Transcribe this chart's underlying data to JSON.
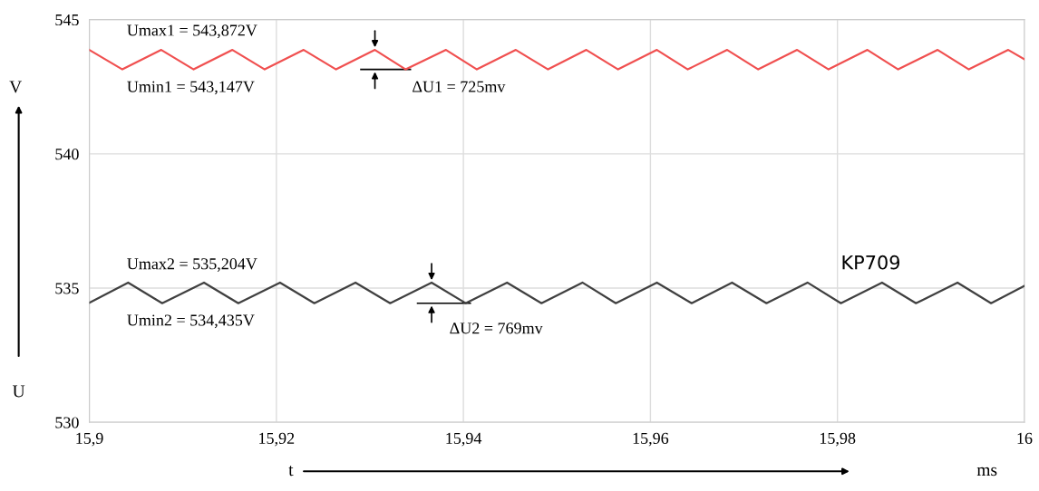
{
  "chart_data": {
    "type": "line",
    "xlabel": "t",
    "ylabel": "U",
    "xlim": [
      15.9,
      16
    ],
    "ylim": [
      530,
      545
    ],
    "xticks": [
      {
        "value": 15.9,
        "label": "15,9"
      },
      {
        "value": 15.92,
        "label": "15,92"
      },
      {
        "value": 15.94,
        "label": "15,94"
      },
      {
        "value": 15.96,
        "label": "15,96"
      },
      {
        "value": 15.98,
        "label": "15,98"
      },
      16
    ],
    "yticks": [
      530,
      535,
      540,
      545
    ],
    "grid": true,
    "legend": false,
    "marker": "none",
    "line_style": "solid",
    "series": [
      {
        "color": "#f05050",
        "x": [
          15.9,
          15.90353,
          15.90769,
          15.91115,
          15.9153,
          15.91875,
          15.92292,
          15.92638,
          15.93054,
          15.93383,
          15.93814,
          15.94144,
          15.94561,
          15.94905,
          15.95315,
          15.95654,
          15.96069,
          15.96399,
          15.96821,
          15.97153,
          15.97569,
          15.97905,
          15.98321,
          15.98649,
          15.99072,
          15.99405,
          15.99827,
          16
        ],
        "values": [
          543.872,
          543.147,
          543.872,
          543.147,
          543.872,
          543.147,
          543.872,
          543.147,
          543.872,
          543.147,
          543.872,
          543.147,
          543.872,
          543.147,
          543.872,
          543.147,
          543.872,
          543.147,
          543.872,
          543.147,
          543.872,
          543.147,
          543.872,
          543.147,
          543.872,
          543.147,
          543.872,
          543.52
        ]
      },
      {
        "name": "KP709",
        "color": "#404040",
        "x": [
          15.9,
          15.90415,
          15.90779,
          15.91226,
          15.91593,
          15.92039,
          15.92406,
          15.92846,
          15.93217,
          15.9366,
          15.94024,
          15.94467,
          15.94835,
          15.95273,
          15.9563,
          15.96069,
          15.96441,
          15.96873,
          15.97241,
          15.9768,
          15.98037,
          15.98477,
          15.9884,
          15.99284,
          15.99643,
          16
        ],
        "values": [
          534.45,
          535.204,
          534.435,
          535.204,
          534.435,
          535.204,
          534.435,
          535.204,
          534.435,
          535.204,
          534.435,
          535.204,
          534.435,
          535.204,
          534.435,
          535.204,
          534.435,
          535.204,
          534.435,
          535.204,
          534.435,
          535.204,
          534.435,
          535.204,
          534.435,
          535.08
        ]
      }
    ],
    "annotations": [
      "Umax1 = 543,872V",
      "Umin1 = 543,147V",
      "ΔU1 = 725mv",
      "Umax2 = 535,204V",
      "Umin2 = 534,435V",
      "ΔU2 = 769mv",
      "V",
      "ms"
    ]
  }
}
